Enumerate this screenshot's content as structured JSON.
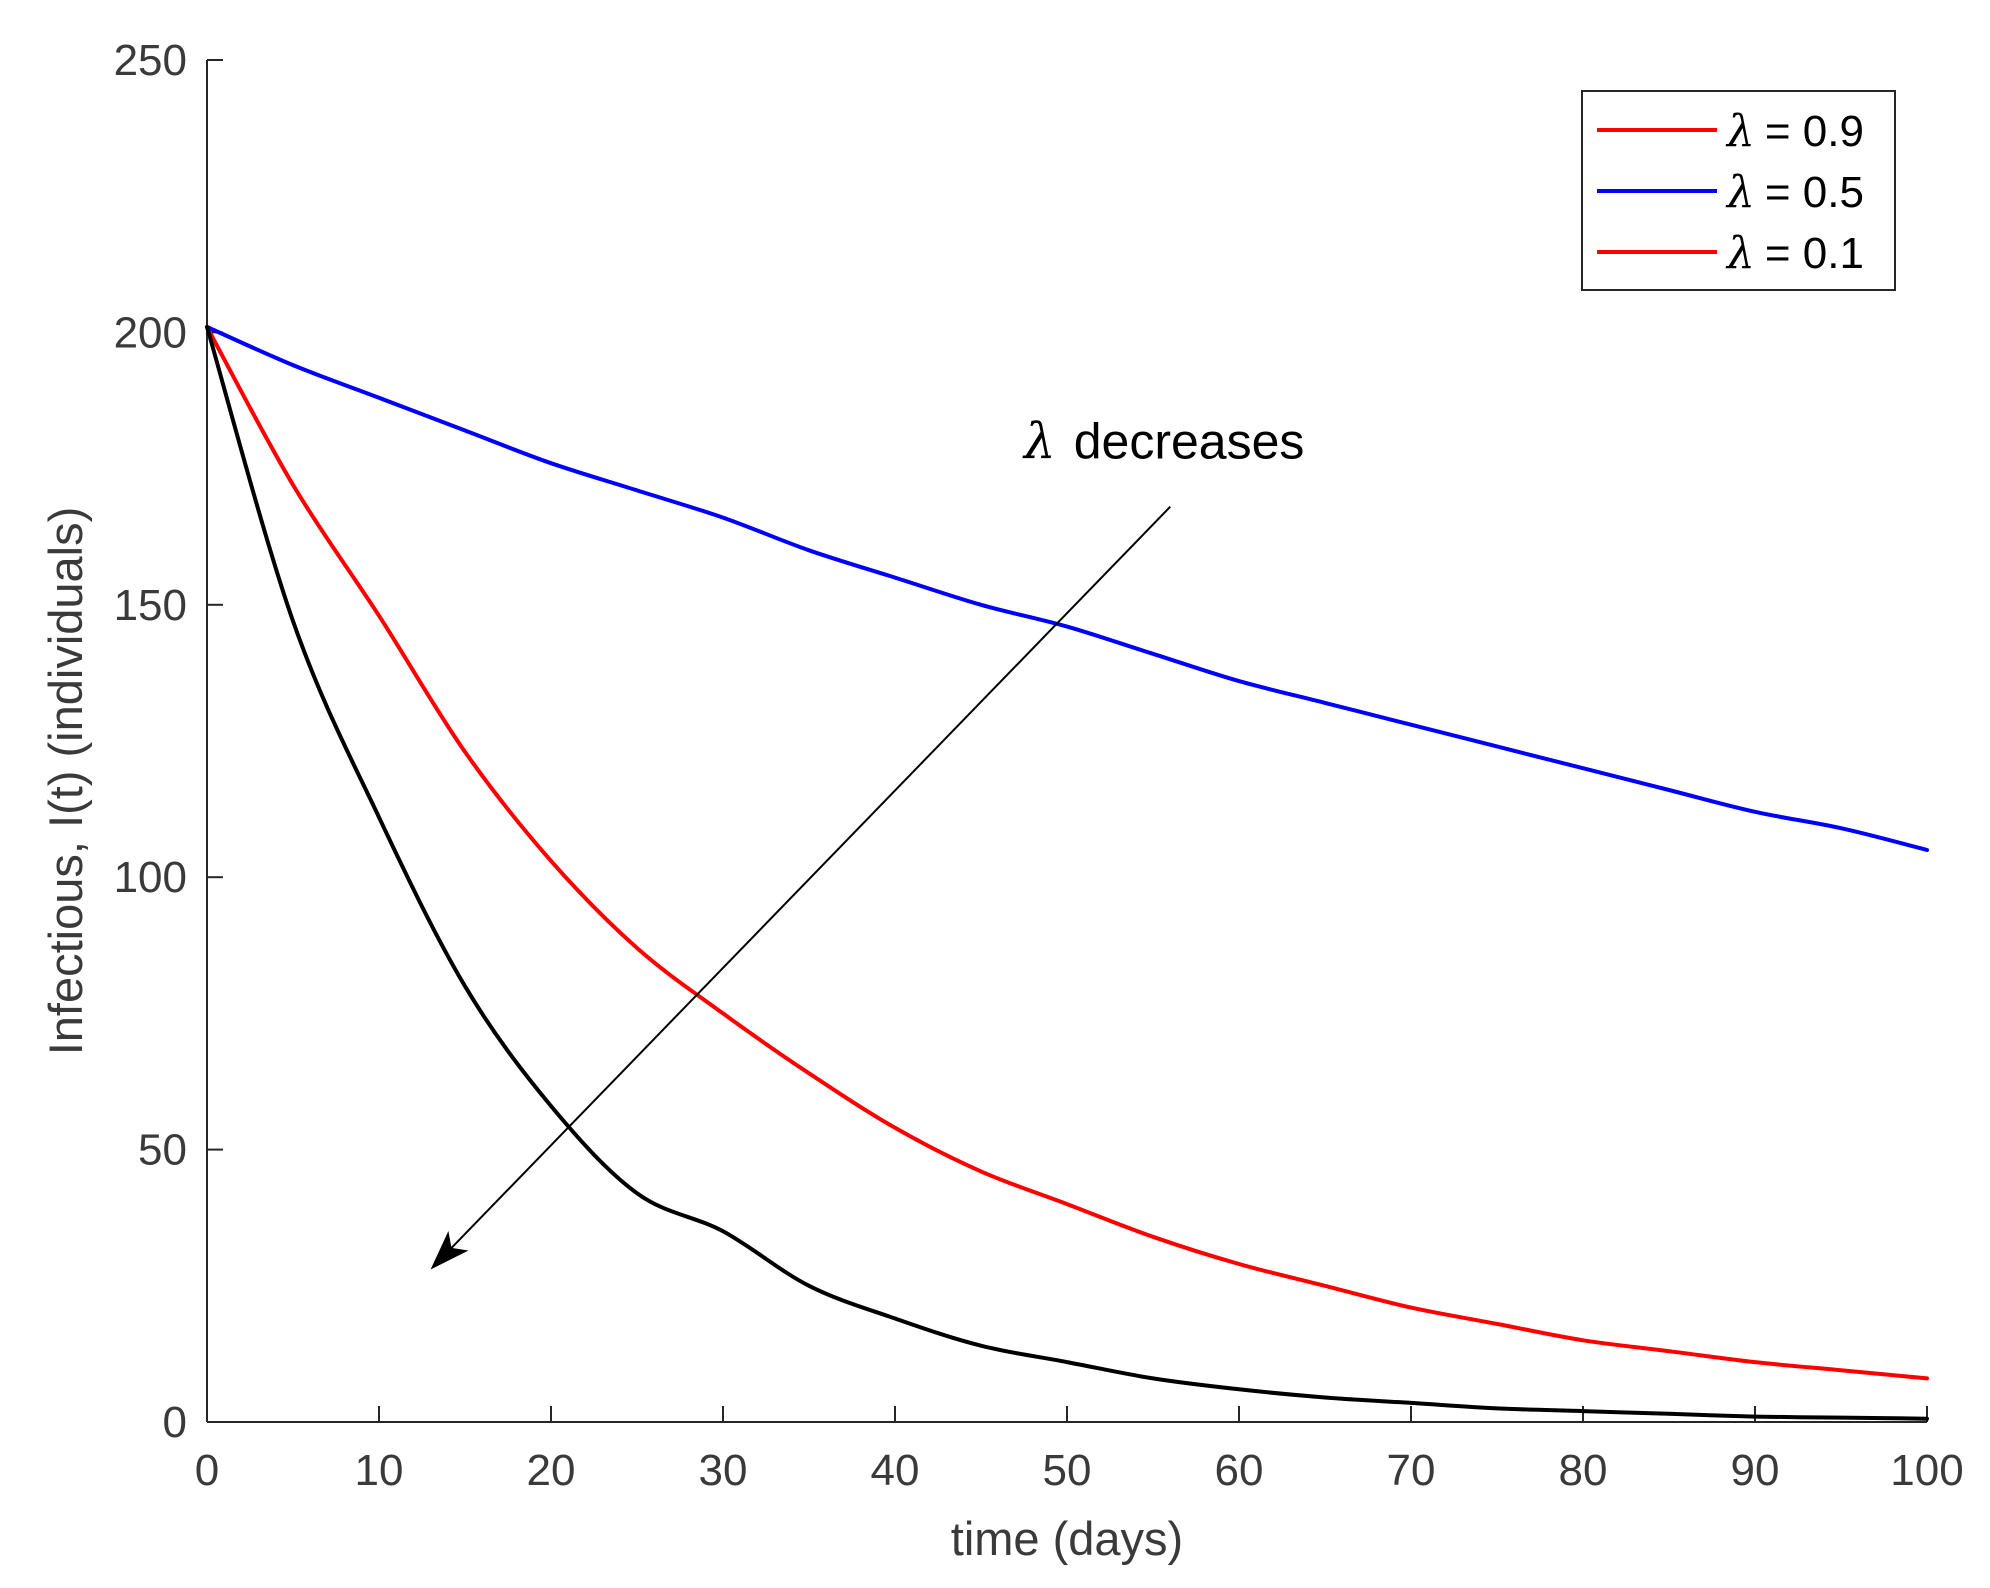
{
  "chart_data": {
    "type": "line",
    "title": "",
    "xlabel": "time (days)",
    "ylabel": "Infectious, I(t) (individuals)",
    "xlim": [
      0,
      100
    ],
    "ylim": [
      0,
      250
    ],
    "xticks": [
      0,
      10,
      20,
      30,
      40,
      50,
      60,
      70,
      80,
      90,
      100
    ],
    "yticks": [
      0,
      50,
      100,
      150,
      200,
      250
    ],
    "grid": false,
    "legend_position": "top-right",
    "x": [
      0,
      5,
      10,
      15,
      20,
      25,
      30,
      35,
      40,
      45,
      50,
      55,
      60,
      65,
      70,
      75,
      80,
      85,
      90,
      95,
      100
    ],
    "series": [
      {
        "name": "λ = 0.9",
        "symbol": "λ",
        "value_label": "= 0.9",
        "color": "#ff0000",
        "values": [
          201,
          172,
          148,
          123,
          103,
          87,
          75,
          64,
          54,
          46,
          40,
          34,
          29,
          25,
          21,
          18,
          15,
          13,
          11,
          9.5,
          8
        ]
      },
      {
        "name": "λ = 0.5",
        "symbol": "λ",
        "value_label": "= 0.5",
        "color": "#0000ff",
        "values": [
          201,
          194,
          188,
          182,
          176,
          171,
          166,
          160,
          155,
          150,
          146,
          141,
          136,
          132,
          128,
          124,
          120,
          116,
          112,
          109,
          105
        ]
      },
      {
        "name": "λ = 0.1",
        "symbol": "λ",
        "value_label": "= 0.1",
        "color": "#000000",
        "legend_color": "#ff0000",
        "values": [
          201,
          147,
          111,
          80,
          58,
          42,
          35,
          25,
          19,
          14,
          11,
          8,
          6,
          4.5,
          3.5,
          2.5,
          2,
          1.5,
          1,
          0.8,
          0.6
        ]
      }
    ],
    "annotations": [
      {
        "symbol": "λ",
        "text": "decreases",
        "text_anchor": [
          47.5,
          180
        ],
        "arrow_from": [
          56,
          168
        ],
        "arrow_to": [
          13,
          28
        ]
      }
    ]
  }
}
